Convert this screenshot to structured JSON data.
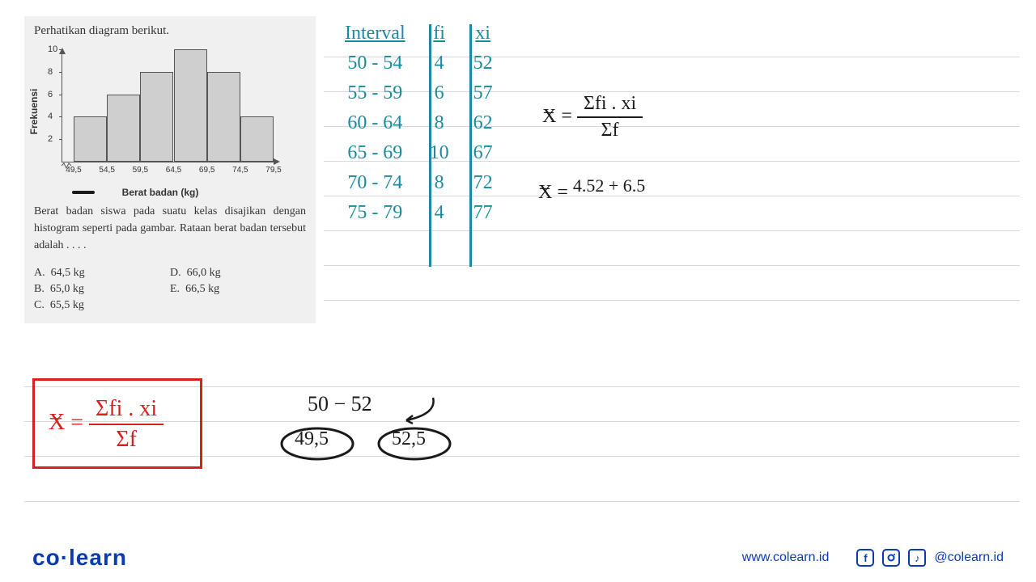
{
  "problem": {
    "title": "Perhatikan diagram berikut.",
    "text": "Berat badan siswa pada suatu kelas disajikan dengan histogram seperti pada gambar. Rataan berat badan tersebut adalah . . . .",
    "answers": {
      "A": "64,5 kg",
      "B": "65,0 kg",
      "C": "65,5 kg",
      "D": "66,0 kg",
      "E": "66,5 kg"
    }
  },
  "chart": {
    "type": "histogram",
    "y_label": "Frekuensi",
    "x_label": "Berat badan (kg)",
    "ylim": [
      0,
      10
    ],
    "yticks": [
      2,
      4,
      6,
      8,
      10
    ],
    "x_boundaries": [
      "49,5",
      "54,5",
      "59,5",
      "64,5",
      "69,5",
      "74,5",
      "79,5"
    ],
    "bar_values": [
      4,
      6,
      8,
      10,
      8,
      4
    ],
    "bar_color": "#cfcfcf",
    "bar_border": "#555555",
    "background": "#f0f0f0",
    "label_fontsize": 12,
    "tick_fontsize": 11
  },
  "table": {
    "headers": [
      "Interval",
      "fi",
      "xi"
    ],
    "rows": [
      [
        "50 - 54",
        "4",
        "52"
      ],
      [
        "55 - 59",
        "6",
        "57"
      ],
      [
        "60 - 64",
        "8",
        "62"
      ],
      [
        "65 - 69",
        "10",
        "67"
      ],
      [
        "70 - 74",
        "8",
        "72"
      ],
      [
        "75 - 79",
        "4",
        "77"
      ]
    ],
    "color": "#1a8a9e"
  },
  "formulas": {
    "mean_label": "x̄ =",
    "frac_num": "Σfi . xi",
    "frac_den": "Σf",
    "step2_label": "x̄ =",
    "step2_expr": "4.52 + 6.5",
    "boxed_num": "Σfi . xi",
    "boxed_den": "Σf"
  },
  "scratch": {
    "range": "50 − 52",
    "left_circ": "49,5",
    "right_circ": "52,5"
  },
  "footer": {
    "logo_left": "co",
    "logo_right": "learn",
    "url": "www.colearn.id",
    "handle": "@colearn.id"
  },
  "colors": {
    "teal": "#1a8a9e",
    "black": "#1a1a1a",
    "red": "#d92020",
    "brand": "#0b3bb0"
  }
}
